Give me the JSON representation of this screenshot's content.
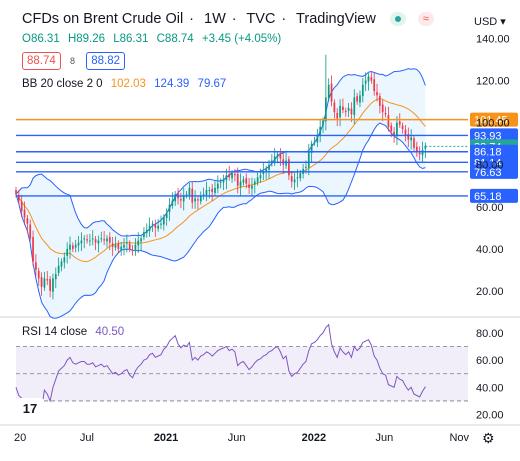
{
  "header": {
    "symbol": "CFDs on Brent Crude Oil",
    "interval": "1W",
    "source": "TVC",
    "brand": "TradingView",
    "currency": "USD"
  },
  "ohlc": {
    "open": "O86.31",
    "high": "H89.26",
    "low": "L86.31",
    "close": "C88.74",
    "change": "+3.45 (+4.05%)"
  },
  "quote": {
    "sell": "88.74",
    "spread": "8",
    "buy": "88.82"
  },
  "indicators": {
    "bb": {
      "label": "BB 20 close 2 0",
      "basis": "102.03",
      "upper": "124.39",
      "lower": "79.67",
      "basis_color": "#f7931a",
      "band_color": "#2962ff"
    },
    "rsi": {
      "label": "RSI 14 close",
      "value": "40.50",
      "color": "#7e57c2"
    }
  },
  "colors": {
    "up": "#089981",
    "down": "#f23645",
    "level": "#2962ff",
    "orange": "#f7931a",
    "fill": "#e3f2fd"
  },
  "chart_data": [
    {
      "type": "candlestick",
      "title": "CFDs on Brent Crude Oil · 1W · TVC",
      "y_axis_ticks": [
        20,
        40,
        60,
        80,
        100,
        120,
        140
      ],
      "ylim": [
        10,
        145
      ],
      "x_axis_labels": [
        "20",
        "Jul",
        "2021",
        "Jun",
        "2022",
        "Jun",
        "Nov"
      ],
      "x_axis_label_weeks": [
        0,
        26,
        52,
        78,
        104,
        130,
        156
      ],
      "x_range_weeks": [
        0,
        159
      ],
      "horizontal_levels": [
        {
          "value": 101.45,
          "color": "#f7931a",
          "label": "101.45"
        },
        {
          "value": 93.93,
          "color": "#2962ff",
          "label": "93.93"
        },
        {
          "value": 88.74,
          "color": "#26a69a",
          "label": "88.74",
          "current": true
        },
        {
          "value": 86.18,
          "color": "#2962ff",
          "label": "86.18"
        },
        {
          "value": 81.14,
          "color": "#2962ff",
          "label": "81.14"
        },
        {
          "value": 76.63,
          "color": "#2962ff",
          "label": "76.63"
        },
        {
          "value": 65.18,
          "color": "#2962ff",
          "label": "65.18"
        }
      ],
      "price_path_weekly_close": [
        66,
        63,
        58,
        55,
        52,
        45,
        34,
        30,
        26,
        22,
        26,
        25,
        20,
        26,
        28,
        32,
        34,
        36,
        40,
        42,
        40,
        42,
        43,
        44,
        45,
        44,
        44,
        45,
        43,
        44,
        45,
        44,
        45,
        43,
        41,
        42,
        40,
        41,
        42,
        43,
        40,
        39,
        42,
        44,
        45,
        48,
        49,
        51,
        52,
        50,
        51,
        52,
        55,
        57,
        61,
        63,
        66,
        64,
        63,
        65,
        66,
        69,
        62,
        64,
        63,
        65,
        66,
        68,
        68,
        67,
        69,
        71,
        72,
        73,
        75,
        74,
        76,
        75,
        70,
        72,
        73,
        71,
        69,
        70,
        72,
        74,
        75,
        77,
        78,
        80,
        82,
        84,
        85,
        83,
        80,
        82,
        75,
        72,
        73,
        74,
        76,
        78,
        79,
        86,
        90,
        91,
        94,
        98,
        101,
        112,
        118,
        110,
        105,
        102,
        108,
        106,
        105,
        107,
        104,
        112,
        110,
        113,
        118,
        120,
        122,
        120,
        115,
        113,
        108,
        105,
        104,
        98,
        96,
        94,
        100,
        99,
        97,
        94,
        92,
        93,
        88,
        86,
        85,
        87,
        89
      ],
      "bollinger_basis_ends": [
        69,
        29,
        43,
        45,
        74,
        98,
        108,
        102
      ],
      "bollinger": {
        "basis": 102.03,
        "upper": 124.39,
        "lower": 79.67
      },
      "last": {
        "open": 86.31,
        "high": 89.26,
        "low": 86.31,
        "close": 88.74
      }
    },
    {
      "type": "line",
      "title": "RSI 14 close",
      "y_axis_ticks": [
        20,
        40,
        60,
        80
      ],
      "ylim": [
        16,
        88
      ],
      "bands": [
        30,
        50,
        70
      ],
      "rsi_series": [
        40,
        34,
        32,
        30,
        28,
        26,
        20,
        19,
        18,
        24,
        38,
        35,
        30,
        40,
        46,
        52,
        54,
        56,
        60,
        62,
        58,
        57,
        58,
        59,
        59,
        57,
        57,
        58,
        55,
        56,
        57,
        55,
        56,
        53,
        50,
        51,
        49,
        50,
        52,
        53,
        49,
        47,
        52,
        55,
        57,
        60,
        61,
        64,
        65,
        62,
        63,
        64,
        68,
        70,
        74,
        76,
        78,
        72,
        69,
        71,
        70,
        73,
        60,
        62,
        60,
        63,
        64,
        66,
        65,
        63,
        65,
        67,
        68,
        69,
        70,
        67,
        68,
        66,
        56,
        58,
        59,
        56,
        53,
        55,
        58,
        60,
        61,
        63,
        64,
        66,
        67,
        69,
        70,
        66,
        61,
        63,
        52,
        48,
        50,
        51,
        54,
        57,
        59,
        67,
        72,
        73,
        75,
        78,
        80,
        84,
        86,
        72,
        66,
        62,
        69,
        66,
        64,
        66,
        62,
        70,
        67,
        69,
        73,
        74,
        75,
        71,
        63,
        60,
        54,
        50,
        49,
        42,
        41,
        40,
        48,
        46,
        45,
        41,
        38,
        40,
        35,
        34,
        33,
        37,
        40.5
      ]
    }
  ]
}
